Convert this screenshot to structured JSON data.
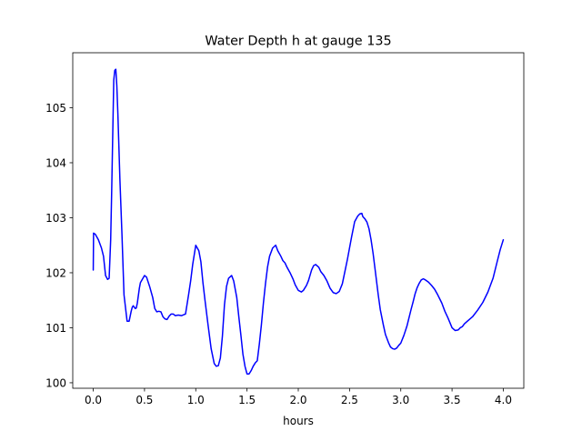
{
  "chart_data": {
    "type": "line",
    "title": "Water Depth h at gauge 135",
    "xlabel": "hours",
    "ylabel": "",
    "xlim": [
      -0.2,
      4.2
    ],
    "ylim": [
      99.9,
      106.0
    ],
    "xticks": [
      0.0,
      0.5,
      1.0,
      1.5,
      2.0,
      2.5,
      3.0,
      3.5,
      4.0
    ],
    "xtick_labels": [
      "0.0",
      "0.5",
      "1.0",
      "1.5",
      "2.0",
      "2.5",
      "3.0",
      "3.5",
      "4.0"
    ],
    "yticks": [
      100,
      101,
      102,
      103,
      104,
      105
    ],
    "ytick_labels": [
      "100",
      "101",
      "102",
      "103",
      "104",
      "105"
    ],
    "grid": false,
    "legend": "none",
    "series": [
      {
        "color": "#0000ff",
        "x": [
          0.0,
          0.003,
          0.02,
          0.05,
          0.08,
          0.1,
          0.12,
          0.14,
          0.155,
          0.17,
          0.18,
          0.19,
          0.2,
          0.21,
          0.22,
          0.23,
          0.24,
          0.25,
          0.26,
          0.27,
          0.28,
          0.3,
          0.33,
          0.35,
          0.37,
          0.38,
          0.39,
          0.41,
          0.42,
          0.43,
          0.45,
          0.46,
          0.5,
          0.52,
          0.55,
          0.58,
          0.6,
          0.62,
          0.64,
          0.66,
          0.68,
          0.7,
          0.72,
          0.74,
          0.76,
          0.78,
          0.8,
          0.83,
          0.86,
          0.9,
          0.93,
          0.95,
          0.97,
          1.0,
          1.03,
          1.05,
          1.07,
          1.09,
          1.12,
          1.15,
          1.18,
          1.2,
          1.22,
          1.24,
          1.26,
          1.28,
          1.3,
          1.32,
          1.35,
          1.37,
          1.4,
          1.42,
          1.44,
          1.46,
          1.48,
          1.5,
          1.52,
          1.54,
          1.56,
          1.58,
          1.6,
          1.62,
          1.64,
          1.66,
          1.68,
          1.7,
          1.72,
          1.75,
          1.78,
          1.8,
          1.83,
          1.85,
          1.87,
          1.89,
          1.92,
          1.95,
          1.97,
          2.0,
          2.03,
          2.05,
          2.08,
          2.1,
          2.13,
          2.15,
          2.17,
          2.2,
          2.22,
          2.25,
          2.28,
          2.31,
          2.34,
          2.37,
          2.4,
          2.43,
          2.45,
          2.48,
          2.5,
          2.52,
          2.55,
          2.58,
          2.6,
          2.62,
          2.63,
          2.65,
          2.67,
          2.69,
          2.71,
          2.73,
          2.75,
          2.78,
          2.8,
          2.83,
          2.85,
          2.88,
          2.9,
          2.92,
          2.94,
          2.96,
          2.98,
          3.0,
          3.03,
          3.06,
          3.08,
          3.1,
          3.12,
          3.14,
          3.16,
          3.18,
          3.2,
          3.22,
          3.24,
          3.27,
          3.3,
          3.33,
          3.36,
          3.4,
          3.43,
          3.46,
          3.5,
          3.53,
          3.56,
          3.58,
          3.6,
          3.62,
          3.65,
          3.7,
          3.75,
          3.8,
          3.85,
          3.9,
          3.94,
          3.97,
          4.0
        ],
        "y": [
          102.05,
          102.72,
          102.7,
          102.6,
          102.45,
          102.3,
          101.95,
          101.88,
          101.9,
          102.6,
          103.5,
          104.5,
          105.5,
          105.68,
          105.7,
          105.4,
          104.9,
          104.3,
          103.7,
          103.2,
          102.7,
          101.6,
          101.12,
          101.12,
          101.3,
          101.37,
          101.4,
          101.35,
          101.36,
          101.45,
          101.72,
          101.82,
          101.95,
          101.92,
          101.75,
          101.55,
          101.35,
          101.29,
          101.3,
          101.29,
          101.2,
          101.16,
          101.15,
          101.21,
          101.25,
          101.25,
          101.22,
          101.23,
          101.22,
          101.25,
          101.6,
          101.85,
          102.15,
          102.5,
          102.4,
          102.2,
          101.82,
          101.5,
          101.05,
          100.62,
          100.35,
          100.3,
          100.31,
          100.45,
          100.85,
          101.42,
          101.75,
          101.9,
          101.95,
          101.85,
          101.55,
          101.2,
          100.87,
          100.52,
          100.3,
          100.16,
          100.16,
          100.22,
          100.3,
          100.36,
          100.4,
          100.7,
          101.05,
          101.45,
          101.8,
          102.1,
          102.3,
          102.45,
          102.5,
          102.4,
          102.3,
          102.22,
          102.18,
          102.1,
          102.0,
          101.88,
          101.78,
          101.68,
          101.65,
          101.68,
          101.77,
          101.86,
          102.05,
          102.13,
          102.15,
          102.1,
          102.02,
          101.95,
          101.85,
          101.72,
          101.64,
          101.62,
          101.66,
          101.8,
          101.98,
          102.25,
          102.45,
          102.65,
          102.93,
          103.03,
          103.07,
          103.08,
          103.02,
          102.98,
          102.92,
          102.8,
          102.6,
          102.35,
          102.05,
          101.6,
          101.33,
          101.05,
          100.88,
          100.73,
          100.65,
          100.62,
          100.61,
          100.63,
          100.68,
          100.72,
          100.86,
          101.03,
          101.18,
          101.33,
          101.47,
          101.62,
          101.73,
          101.81,
          101.87,
          101.89,
          101.87,
          101.83,
          101.77,
          101.7,
          101.6,
          101.45,
          101.3,
          101.18,
          101.0,
          100.95,
          100.96,
          101.0,
          101.02,
          101.07,
          101.12,
          101.2,
          101.32,
          101.46,
          101.65,
          101.9,
          102.2,
          102.42,
          102.6
        ]
      }
    ]
  }
}
